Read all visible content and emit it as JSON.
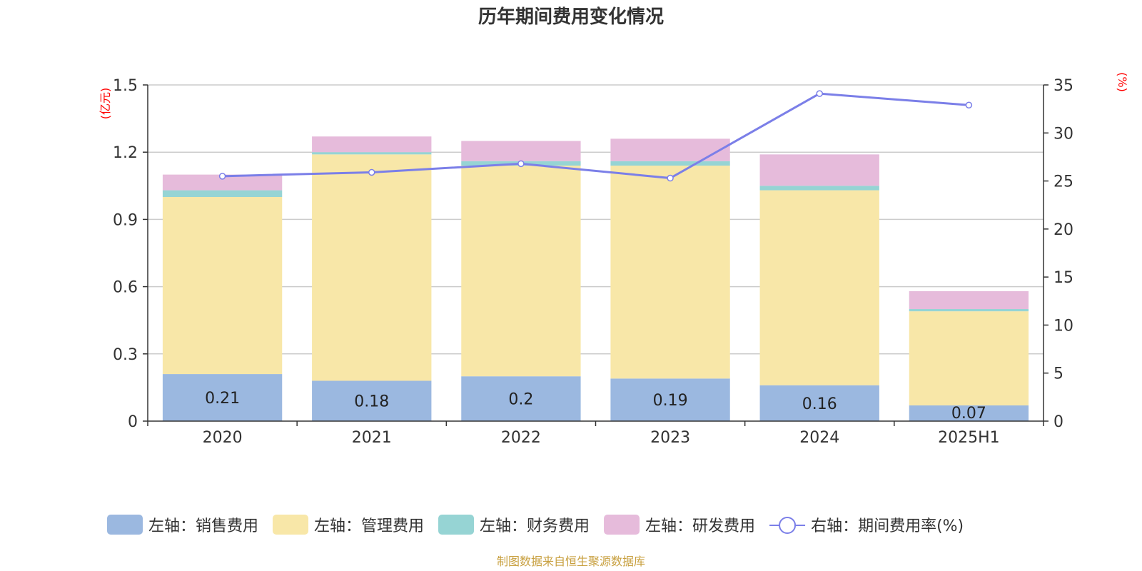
{
  "chart_data": {
    "type": "bar",
    "stacked": true,
    "title": "历年期间费用变化情况",
    "categories": [
      "2020",
      "2021",
      "2022",
      "2023",
      "2024",
      "2025H1"
    ],
    "left_axis": {
      "unit": "(亿元)",
      "ylim": [
        0,
        1.5
      ],
      "ticks": [
        0,
        0.3,
        0.6,
        0.9,
        1.2,
        1.5
      ],
      "tick_labels": [
        "0",
        "0.3",
        "0.6",
        "0.9",
        "1.2",
        "1.5"
      ]
    },
    "right_axis": {
      "unit": "(%)",
      "ylim": [
        0,
        35
      ],
      "ticks": [
        0,
        5,
        10,
        15,
        20,
        25,
        30,
        35
      ],
      "tick_labels": [
        "0",
        "5",
        "10",
        "15",
        "20",
        "25",
        "30",
        "35"
      ]
    },
    "grid": true,
    "series": [
      {
        "name": "左轴：销售费用",
        "axis": "left",
        "kind": "bar",
        "color": "#9bb8e0",
        "values": [
          0.21,
          0.18,
          0.2,
          0.19,
          0.16,
          0.07
        ],
        "labels": [
          "0.21",
          "0.18",
          "0.2",
          "0.19",
          "0.16",
          "0.07"
        ]
      },
      {
        "name": "左轴：管理费用",
        "axis": "left",
        "kind": "bar",
        "color": "#f8e7a8",
        "values": [
          0.79,
          1.01,
          0.94,
          0.95,
          0.87,
          0.42
        ]
      },
      {
        "name": "左轴：财务费用",
        "axis": "left",
        "kind": "bar",
        "color": "#96d4d4",
        "values": [
          0.03,
          0.01,
          0.02,
          0.02,
          0.02,
          0.01
        ]
      },
      {
        "name": "左轴：研发费用",
        "axis": "left",
        "kind": "bar",
        "color": "#e6bbdb",
        "values": [
          0.07,
          0.07,
          0.09,
          0.1,
          0.14,
          0.08
        ]
      },
      {
        "name": "右轴：期间费用率(%)",
        "axis": "right",
        "kind": "line",
        "color": "#7b7fe8",
        "values": [
          25.5,
          25.9,
          26.8,
          25.3,
          34.1,
          32.9
        ]
      }
    ],
    "legend_position": "bottom",
    "source": "制图数据来自恒生聚源数据库"
  }
}
